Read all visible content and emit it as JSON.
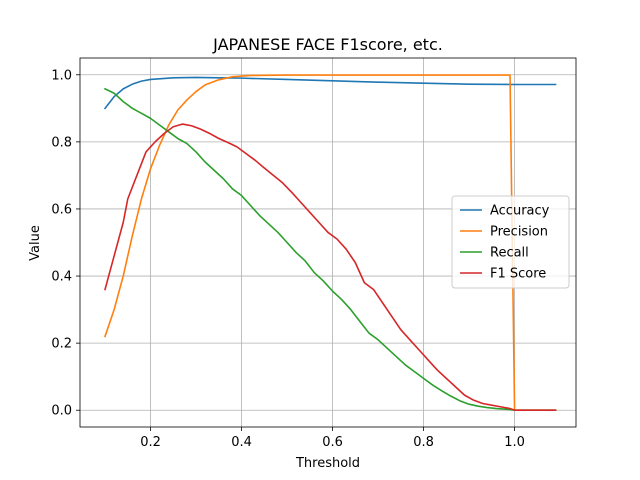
{
  "chart_data": {
    "type": "line",
    "title": "JAPANESE FACE F1score, etc.",
    "xlabel": "Threshold",
    "ylabel": "Value",
    "xlim": [
      0.045,
      1.135
    ],
    "ylim": [
      -0.05,
      1.05
    ],
    "xticks": [
      0.2,
      0.4,
      0.6,
      0.8,
      1.0
    ],
    "xtick_labels": [
      "0.2",
      "0.4",
      "0.6",
      "0.8",
      "1.0"
    ],
    "yticks": [
      0.0,
      0.2,
      0.4,
      0.6,
      0.8,
      1.0
    ],
    "ytick_labels": [
      "0.0",
      "0.2",
      "0.4",
      "0.6",
      "0.8",
      "1.0"
    ],
    "grid": true,
    "legend_position": "center-right",
    "series": [
      {
        "name": "Accuracy",
        "color": "#1f77b4",
        "points": [
          [
            0.1,
            0.9
          ],
          [
            0.12,
            0.935
          ],
          [
            0.14,
            0.958
          ],
          [
            0.16,
            0.972
          ],
          [
            0.18,
            0.981
          ],
          [
            0.2,
            0.986
          ],
          [
            0.25,
            0.991
          ],
          [
            0.3,
            0.992
          ],
          [
            0.35,
            0.991
          ],
          [
            0.4,
            0.99
          ],
          [
            0.5,
            0.986
          ],
          [
            0.6,
            0.982
          ],
          [
            0.7,
            0.978
          ],
          [
            0.8,
            0.975
          ],
          [
            0.9,
            0.972
          ],
          [
            1.0,
            0.971
          ],
          [
            1.09,
            0.971
          ]
        ]
      },
      {
        "name": "Precision",
        "color": "#ff7f0e",
        "points": [
          [
            0.1,
            0.22
          ],
          [
            0.12,
            0.3
          ],
          [
            0.14,
            0.4
          ],
          [
            0.16,
            0.52
          ],
          [
            0.18,
            0.63
          ],
          [
            0.2,
            0.72
          ],
          [
            0.22,
            0.79
          ],
          [
            0.24,
            0.85
          ],
          [
            0.26,
            0.895
          ],
          [
            0.28,
            0.925
          ],
          [
            0.3,
            0.95
          ],
          [
            0.32,
            0.97
          ],
          [
            0.35,
            0.985
          ],
          [
            0.38,
            0.994
          ],
          [
            0.42,
            0.998
          ],
          [
            0.5,
            0.999
          ],
          [
            0.98,
            0.999
          ],
          [
            0.99,
            0.999
          ],
          [
            1.0,
            0.0
          ],
          [
            1.09,
            0.0
          ]
        ]
      },
      {
        "name": "Recall",
        "color": "#2ca02c",
        "points": [
          [
            0.1,
            0.958
          ],
          [
            0.12,
            0.945
          ],
          [
            0.14,
            0.92
          ],
          [
            0.16,
            0.9
          ],
          [
            0.18,
            0.885
          ],
          [
            0.2,
            0.87
          ],
          [
            0.22,
            0.85
          ],
          [
            0.24,
            0.83
          ],
          [
            0.26,
            0.81
          ],
          [
            0.28,
            0.795
          ],
          [
            0.3,
            0.77
          ],
          [
            0.32,
            0.74
          ],
          [
            0.34,
            0.715
          ],
          [
            0.36,
            0.69
          ],
          [
            0.38,
            0.66
          ],
          [
            0.4,
            0.64
          ],
          [
            0.42,
            0.61
          ],
          [
            0.44,
            0.58
          ],
          [
            0.46,
            0.555
          ],
          [
            0.48,
            0.53
          ],
          [
            0.5,
            0.5
          ],
          [
            0.52,
            0.47
          ],
          [
            0.54,
            0.445
          ],
          [
            0.56,
            0.41
          ],
          [
            0.58,
            0.385
          ],
          [
            0.6,
            0.355
          ],
          [
            0.62,
            0.33
          ],
          [
            0.64,
            0.3
          ],
          [
            0.66,
            0.265
          ],
          [
            0.68,
            0.23
          ],
          [
            0.7,
            0.21
          ],
          [
            0.72,
            0.185
          ],
          [
            0.74,
            0.16
          ],
          [
            0.76,
            0.135
          ],
          [
            0.78,
            0.115
          ],
          [
            0.8,
            0.095
          ],
          [
            0.82,
            0.075
          ],
          [
            0.84,
            0.058
          ],
          [
            0.86,
            0.042
          ],
          [
            0.88,
            0.028
          ],
          [
            0.9,
            0.018
          ],
          [
            0.92,
            0.012
          ],
          [
            0.94,
            0.008
          ],
          [
            0.96,
            0.005
          ],
          [
            0.98,
            0.003
          ],
          [
            1.0,
            0.0
          ],
          [
            1.09,
            0.0
          ]
        ]
      },
      {
        "name": "F1 Score",
        "color": "#d62728",
        "points": [
          [
            0.1,
            0.36
          ],
          [
            0.12,
            0.46
          ],
          [
            0.14,
            0.56
          ],
          [
            0.15,
            0.63
          ],
          [
            0.17,
            0.7
          ],
          [
            0.19,
            0.77
          ],
          [
            0.21,
            0.8
          ],
          [
            0.23,
            0.825
          ],
          [
            0.25,
            0.845
          ],
          [
            0.27,
            0.853
          ],
          [
            0.29,
            0.848
          ],
          [
            0.31,
            0.838
          ],
          [
            0.33,
            0.825
          ],
          [
            0.35,
            0.81
          ],
          [
            0.37,
            0.798
          ],
          [
            0.39,
            0.785
          ],
          [
            0.41,
            0.765
          ],
          [
            0.43,
            0.745
          ],
          [
            0.45,
            0.722
          ],
          [
            0.47,
            0.7
          ],
          [
            0.49,
            0.678
          ],
          [
            0.51,
            0.65
          ],
          [
            0.53,
            0.62
          ],
          [
            0.55,
            0.59
          ],
          [
            0.57,
            0.56
          ],
          [
            0.59,
            0.53
          ],
          [
            0.61,
            0.51
          ],
          [
            0.63,
            0.48
          ],
          [
            0.65,
            0.44
          ],
          [
            0.67,
            0.38
          ],
          [
            0.69,
            0.36
          ],
          [
            0.71,
            0.32
          ],
          [
            0.73,
            0.28
          ],
          [
            0.75,
            0.24
          ],
          [
            0.77,
            0.21
          ],
          [
            0.79,
            0.18
          ],
          [
            0.81,
            0.15
          ],
          [
            0.83,
            0.12
          ],
          [
            0.85,
            0.095
          ],
          [
            0.87,
            0.07
          ],
          [
            0.89,
            0.045
          ],
          [
            0.91,
            0.03
          ],
          [
            0.93,
            0.02
          ],
          [
            0.95,
            0.015
          ],
          [
            0.97,
            0.01
          ],
          [
            0.99,
            0.005
          ],
          [
            1.0,
            0.0
          ],
          [
            1.09,
            0.0
          ]
        ]
      }
    ]
  }
}
